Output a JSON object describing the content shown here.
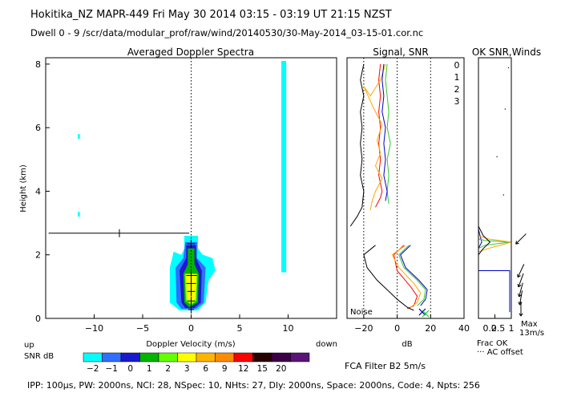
{
  "header": {
    "line1": "Hokitika_NZ  MAPR-449  Fri May 30 2014 03:15 - 03:19 UT 21:15 NZST",
    "line2": "Dwell  0 - 9   /scr/data/modular_prof/raw/wind/20140530/30-May-2014_03-15-01.cor.nc"
  },
  "footer": {
    "params": "IPP: 100µs,  PW: 2000ns,  NCI:  28,  NSpec: 10, NHts: 27,  Dly: 2000ns,  Space: 2000ns,  Code: 4,  Npts: 256",
    "filter": "FCA Filter B2   5m/s"
  },
  "colorbar": {
    "label_top": "up",
    "label_bottom": "SNR dB",
    "label_down": "down",
    "ticks": [
      "-2",
      "-1",
      "0",
      "1",
      "2",
      "3",
      "6",
      "9",
      "12",
      "15",
      "20"
    ],
    "colors": [
      "#00ffff",
      "#2f6fff",
      "#1a1acc",
      "#00b400",
      "#64ff00",
      "#ffff00",
      "#ffb400",
      "#ff8c00",
      "#ff0000",
      "#280000",
      "#3c0046",
      "#5a1478"
    ]
  },
  "chart_data": [
    {
      "type": "heatmap",
      "title": "Averaged Doppler Spectra",
      "xlabel": "Doppler Velocity (m/s)",
      "ylabel": "Height (km)",
      "xlim": [
        -15,
        15
      ],
      "ylim": [
        0,
        8.2
      ],
      "xticks": [
        -10,
        -5,
        0,
        5,
        10
      ],
      "yticks": [
        0,
        2,
        4,
        6,
        8
      ],
      "zero_line": true,
      "contours": [
        {
          "name": "layer-outer",
          "color": "#00ffff",
          "points": [
            [
              -2.2,
              0.5
            ],
            [
              -2.2,
              1.6
            ],
            [
              -1.8,
              2.1
            ],
            [
              -1.0,
              2.0
            ],
            [
              -0.7,
              2.2
            ],
            [
              -0.7,
              2.6
            ],
            [
              0.7,
              2.6
            ],
            [
              0.7,
              2.2
            ],
            [
              1.2,
              2.0
            ],
            [
              2.2,
              1.9
            ],
            [
              2.5,
              1.5
            ],
            [
              1.8,
              1.2
            ],
            [
              1.5,
              0.5
            ],
            [
              0.7,
              0.25
            ],
            [
              -1.2,
              0.25
            ]
          ]
        },
        {
          "name": "layer-2",
          "color": "#2f6fff",
          "points": [
            [
              -1.5,
              0.5
            ],
            [
              -1.6,
              1.6
            ],
            [
              -0.8,
              1.9
            ],
            [
              -0.6,
              2.4
            ],
            [
              0.6,
              2.4
            ],
            [
              0.6,
              1.9
            ],
            [
              1.5,
              1.6
            ],
            [
              1.3,
              0.5
            ],
            [
              0.5,
              0.3
            ],
            [
              -1.0,
              0.3
            ]
          ]
        },
        {
          "name": "layer-3",
          "color": "#1a1acc",
          "points": [
            [
              -1.0,
              0.5
            ],
            [
              -1.2,
              1.5
            ],
            [
              -0.5,
              1.9
            ],
            [
              -0.5,
              2.3
            ],
            [
              0.5,
              2.3
            ],
            [
              0.5,
              1.9
            ],
            [
              1.1,
              1.5
            ],
            [
              1.0,
              0.5
            ],
            [
              0.3,
              0.32
            ],
            [
              -0.6,
              0.32
            ]
          ]
        },
        {
          "name": "layer-4",
          "color": "#00b400",
          "points": [
            [
              -0.7,
              0.5
            ],
            [
              -0.8,
              1.4
            ],
            [
              -0.35,
              1.7
            ],
            [
              -0.35,
              2.2
            ],
            [
              0.35,
              2.2
            ],
            [
              0.35,
              1.7
            ],
            [
              0.8,
              1.4
            ],
            [
              0.7,
              0.5
            ],
            [
              -0.2,
              0.35
            ]
          ]
        },
        {
          "name": "layer-5",
          "color": "#64ff00",
          "points": [
            [
              -0.55,
              0.55
            ],
            [
              -0.65,
              1.4
            ],
            [
              0.65,
              1.4
            ],
            [
              0.55,
              0.55
            ],
            [
              0.0,
              0.42
            ]
          ]
        },
        {
          "name": "layer-6",
          "color": "#ffff00",
          "points": [
            [
              -0.45,
              0.6
            ],
            [
              -0.55,
              1.4
            ],
            [
              0.55,
              1.4
            ],
            [
              0.45,
              0.6
            ],
            [
              0.0,
              0.47
            ]
          ]
        }
      ],
      "spots": [
        {
          "name": "spot-high",
          "color": "#00ffff",
          "x": -11.6,
          "y0": 5.65,
          "y1": 5.8
        },
        {
          "name": "spot-mid",
          "color": "#00ffff",
          "x": -11.6,
          "y0": 3.2,
          "y1": 3.35
        },
        {
          "name": "vertical-band",
          "color": "#00ffff",
          "x0": 9.3,
          "x1": 9.8,
          "y0": 1.45,
          "y1": 8.1
        }
      ],
      "errorbars": [
        {
          "y": 2.68,
          "x0": -14.7,
          "x1": -0.2,
          "xc": -7.4
        },
        {
          "y": 2.35,
          "x0": -0.4,
          "x1": 0.4,
          "xc": 0.0
        },
        {
          "y": 1.35,
          "x0": -0.5,
          "x1": 0.6,
          "xc": 0.0
        },
        {
          "y": 1.1,
          "x0": -0.5,
          "x1": 0.5,
          "xc": 0.0
        },
        {
          "y": 0.85,
          "x0": -0.4,
          "x1": 0.4,
          "xc": 0.0
        },
        {
          "y": 0.55,
          "x0": -0.4,
          "x1": 0.4,
          "xc": 0.0
        },
        {
          "y": 0.28,
          "x0": -0.3,
          "x1": 0.3,
          "xc": 0.0
        }
      ]
    },
    {
      "type": "line",
      "title": "Signal, SNR",
      "xlabel": "dB",
      "xlim": [
        -30,
        40
      ],
      "ylim": [
        0,
        8.2
      ],
      "xticks": [
        -20,
        0,
        20,
        40
      ],
      "dotted_at": [
        -20,
        0,
        20
      ],
      "noise_label": "Noise",
      "legend": [
        "0",
        "1",
        "2",
        "3"
      ],
      "series": [
        {
          "name": "0",
          "color": "#ff0000",
          "points": [
            [
              -10,
              8.0
            ],
            [
              -11,
              7.5
            ],
            [
              -10,
              7.0
            ],
            [
              -11,
              6.5
            ],
            [
              -10,
              6.0
            ],
            [
              -11,
              5.5
            ],
            [
              -10,
              5.0
            ],
            [
              -11,
              4.5
            ],
            [
              -9,
              4.0
            ],
            [
              -10,
              3.8
            ],
            [
              -13,
              3.5
            ],
            [
              null,
              null
            ],
            [
              4,
              2.3
            ],
            [
              -2,
              2.0
            ],
            [
              0,
              1.5
            ],
            [
              8,
              1.0
            ],
            [
              12,
              0.7
            ],
            [
              10,
              0.4
            ],
            [
              6,
              0.3
            ]
          ]
        },
        {
          "name": "1",
          "color": "#ffa500",
          "points": [
            [
              -7,
              8.0
            ],
            [
              -10,
              7.5
            ],
            [
              -16,
              7.0
            ],
            [
              -20,
              7.3
            ],
            [
              -14,
              6.6
            ],
            [
              -9,
              6.1
            ],
            [
              -12,
              5.6
            ],
            [
              -10,
              5.2
            ],
            [
              -13,
              4.8
            ],
            [
              -9,
              4.4
            ],
            [
              -13,
              4.0
            ],
            [
              -15,
              3.7
            ],
            [
              -16,
              3.4
            ],
            [
              null,
              null
            ],
            [
              5,
              2.3
            ],
            [
              -3,
              2.0
            ],
            [
              1,
              1.6
            ],
            [
              10,
              1.1
            ],
            [
              14,
              0.8
            ],
            [
              12,
              0.5
            ],
            [
              8,
              0.35
            ]
          ]
        },
        {
          "name": "2",
          "color": "#32c832",
          "points": [
            [
              -6,
              8.0
            ],
            [
              -7,
              7.5
            ],
            [
              -6,
              7.0
            ],
            [
              -5,
              6.5
            ],
            [
              -6,
              6.0
            ],
            [
              -4,
              5.5
            ],
            [
              -6,
              5.0
            ],
            [
              -5,
              4.5
            ],
            [
              -6,
              4.0
            ],
            [
              -5,
              3.6
            ],
            [
              null,
              null
            ],
            [
              7,
              2.3
            ],
            [
              1,
              2.0
            ],
            [
              4,
              1.6
            ],
            [
              12,
              1.2
            ],
            [
              17,
              0.9
            ],
            [
              16,
              0.6
            ],
            [
              12,
              0.4
            ]
          ]
        },
        {
          "name": "3",
          "color": "#0000c8",
          "points": [
            [
              -8,
              8.0
            ],
            [
              -9,
              7.5
            ],
            [
              -8,
              7.0
            ],
            [
              -9,
              6.5
            ],
            [
              -7,
              6.0
            ],
            [
              -8,
              5.5
            ],
            [
              -7,
              5.0
            ],
            [
              -8,
              4.5
            ],
            [
              -6,
              4.0
            ],
            [
              -7,
              3.7
            ],
            [
              null,
              null
            ],
            [
              8,
              2.3
            ],
            [
              2,
              2.0
            ],
            [
              5,
              1.6
            ],
            [
              13,
              1.2
            ],
            [
              18,
              0.9
            ],
            [
              17,
              0.6
            ],
            [
              14,
              0.4
            ]
          ]
        },
        {
          "name": "noise",
          "color": "#000000",
          "points": [
            [
              -20,
              8.0
            ],
            [
              -22,
              7.5
            ],
            [
              -20,
              7.0
            ],
            [
              -22,
              6.5
            ],
            [
              -21,
              6.0
            ],
            [
              -22,
              5.5
            ],
            [
              -21,
              5.0
            ],
            [
              -22,
              4.5
            ],
            [
              -20,
              4.0
            ],
            [
              -21,
              3.5
            ],
            [
              -24,
              3.2
            ],
            [
              -28,
              2.9
            ],
            [
              null,
              null
            ],
            [
              -13,
              2.3
            ],
            [
              -20,
              2.0
            ],
            [
              -18,
              1.6
            ],
            [
              -12,
              1.2
            ],
            [
              -6,
              0.9
            ],
            [
              0,
              0.6
            ],
            [
              6,
              0.35
            ],
            [
              10,
              0.25
            ]
          ]
        }
      ],
      "markers": [
        {
          "x": 15,
          "y": 0.2,
          "color": "#0000c8",
          "shape": "x"
        },
        {
          "x": 17,
          "y": 0.15,
          "color": "#32c832",
          "shape": "x"
        }
      ]
    },
    {
      "type": "line",
      "title": "OK SNR,Winds",
      "xlabel": "Frac OK",
      "note": "AC offset",
      "xlim": [
        0,
        1
      ],
      "ylim": [
        0,
        8.2
      ],
      "xticks": [
        0.5,
        1
      ],
      "xtick_labels": [
        "0.5",
        "1"
      ],
      "first_tick_label": "0.2",
      "max_label": "Max",
      "max_value": "13m/s",
      "series": [
        {
          "name": "ok-blue",
          "color": "#0000c8",
          "points": [
            [
              0.0,
              2.8
            ],
            [
              0.1,
              2.4
            ],
            [
              0.0,
              2.2
            ],
            [
              0.0,
              1.5
            ],
            [
              0.95,
              1.5
            ],
            [
              0.95,
              0.2
            ]
          ]
        },
        {
          "name": "ok-green",
          "color": "#32c832",
          "points": [
            [
              0.0,
              2.5
            ],
            [
              0.2,
              2.45
            ],
            [
              0.95,
              2.4
            ],
            [
              0.2,
              2.3
            ],
            [
              0.0,
              2.2
            ]
          ]
        },
        {
          "name": "ok-orange",
          "color": "#ffa500",
          "points": [
            [
              0.0,
              2.6
            ],
            [
              0.3,
              2.5
            ],
            [
              1.0,
              2.4
            ],
            [
              0.3,
              2.2
            ],
            [
              0.0,
              2.1
            ]
          ]
        },
        {
          "name": "ok-black",
          "color": "#000000",
          "points": [
            [
              0.0,
              2.9
            ],
            [
              0.15,
              2.6
            ],
            [
              0.35,
              2.4
            ],
            [
              0.15,
              2.2
            ],
            [
              0.0,
              2.0
            ]
          ]
        }
      ],
      "dots": [
        [
          0.9,
          7.9
        ],
        [
          0.8,
          6.6
        ],
        [
          0.55,
          5.1
        ],
        [
          0.75,
          3.9
        ]
      ],
      "wind_arrows": [
        {
          "y": 2.5,
          "angle": 225
        },
        {
          "y": 1.5,
          "angle": 245
        },
        {
          "y": 1.2,
          "angle": 250
        },
        {
          "y": 0.9,
          "angle": 255
        },
        {
          "y": 0.65,
          "angle": 260
        },
        {
          "y": 0.3,
          "angle": 270
        }
      ]
    }
  ]
}
